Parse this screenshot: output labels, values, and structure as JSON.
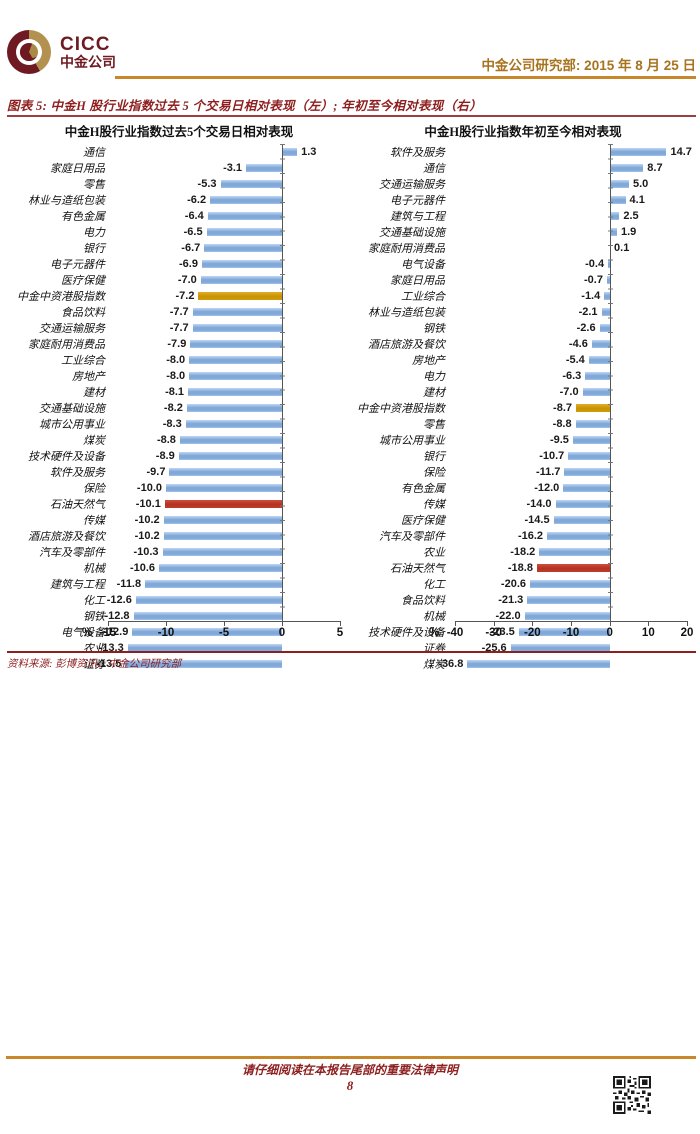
{
  "header": {
    "logo_primary": "CICC",
    "logo_secondary": "中金公司",
    "research_note": "中金公司研究部: 2015 年 8 月 25 日"
  },
  "figure": {
    "title": "图表 5:  中金H 股行业指数过去 5 个交易日相对表现（左）;  年初至今相对表现（右）",
    "source_note": "资料来源: 彭博资讯、中金公司研究部"
  },
  "chart_data": [
    {
      "type": "bar",
      "orientation": "horizontal",
      "title": "中金H股行业指数过去5个交易日相对表现",
      "unit": "%",
      "xlim": [
        -15,
        5
      ],
      "x_ticks": [
        -15,
        -10,
        -5,
        0,
        5
      ],
      "grid": false,
      "categories": [
        "通信",
        "家庭日用品",
        "零售",
        "林业与造纸包装",
        "有色金属",
        "电力",
        "银行",
        "电子元器件",
        "医疗保健",
        "中金中资港股指数",
        "食品饮料",
        "交通运输服务",
        "家庭耐用消费品",
        "工业综合",
        "房地产",
        "建材",
        "交通基础设施",
        "城市公用事业",
        "煤炭",
        "技术硬件及设备",
        "软件及服务",
        "保险",
        "石油天然气",
        "传媒",
        "酒店旅游及餐饮",
        "汽车及零部件",
        "机械",
        "建筑与工程",
        "化工",
        "钢铁",
        "电气设备",
        "农业",
        "证券"
      ],
      "values": [
        1.3,
        -3.1,
        -5.3,
        -6.2,
        -6.4,
        -6.5,
        -6.7,
        -6.9,
        -7.0,
        -7.2,
        -7.7,
        -7.7,
        -7.9,
        -8.0,
        -8.0,
        -8.1,
        -8.2,
        -8.3,
        -8.8,
        -8.9,
        -9.7,
        -10.0,
        -10.1,
        -10.2,
        -10.2,
        -10.3,
        -10.6,
        -11.8,
        -12.6,
        -12.8,
        -12.9,
        -13.3,
        -13.5
      ],
      "bar_colors": {
        "default": "blue",
        "overrides": {
          "9": "gold",
          "22": "red"
        }
      }
    },
    {
      "type": "bar",
      "orientation": "horizontal",
      "title": "中金H股行业指数年初至今相对表现",
      "unit": "%",
      "xlim": [
        -40,
        20
      ],
      "x_ticks": [
        -40,
        -30,
        -20,
        -10,
        0,
        10,
        20
      ],
      "grid": false,
      "categories": [
        "软件及服务",
        "通信",
        "交通运输服务",
        "电子元器件",
        "建筑与工程",
        "交通基础设施",
        "家庭耐用消费品",
        "电气设备",
        "家庭日用品",
        "工业综合",
        "林业与造纸包装",
        "钢铁",
        "酒店旅游及餐饮",
        "房地产",
        "电力",
        "建材",
        "中金中资港股指数",
        "零售",
        "城市公用事业",
        "银行",
        "保险",
        "有色金属",
        "传媒",
        "医疗保健",
        "汽车及零部件",
        "农业",
        "石油天然气",
        "化工",
        "食品饮料",
        "机械",
        "技术硬件及设备",
        "证券",
        "煤炭"
      ],
      "values": [
        14.7,
        8.7,
        5.0,
        4.1,
        2.5,
        1.9,
        0.1,
        -0.4,
        -0.7,
        -1.4,
        -2.1,
        -2.6,
        -4.6,
        -5.4,
        -6.3,
        -7.0,
        -8.7,
        -8.8,
        -9.5,
        -10.7,
        -11.7,
        -12.0,
        -14.0,
        -14.5,
        -16.2,
        -18.2,
        -18.8,
        -20.6,
        -21.3,
        -22.0,
        -23.5,
        -25.6,
        -36.8
      ],
      "bar_colors": {
        "default": "blue",
        "overrides": {
          "16": "gold",
          "26": "red"
        }
      }
    }
  ],
  "footer": {
    "legal_notice": "请仔细阅读在本报告尾部的重要法律声明",
    "page_number": "8"
  },
  "colors": {
    "accent_red": "#8e1f1f",
    "accent_gold": "#c8872a",
    "bar_blue": "#7fa9db",
    "bar_gold": "#c89200",
    "bar_red": "#bf3b2e"
  }
}
